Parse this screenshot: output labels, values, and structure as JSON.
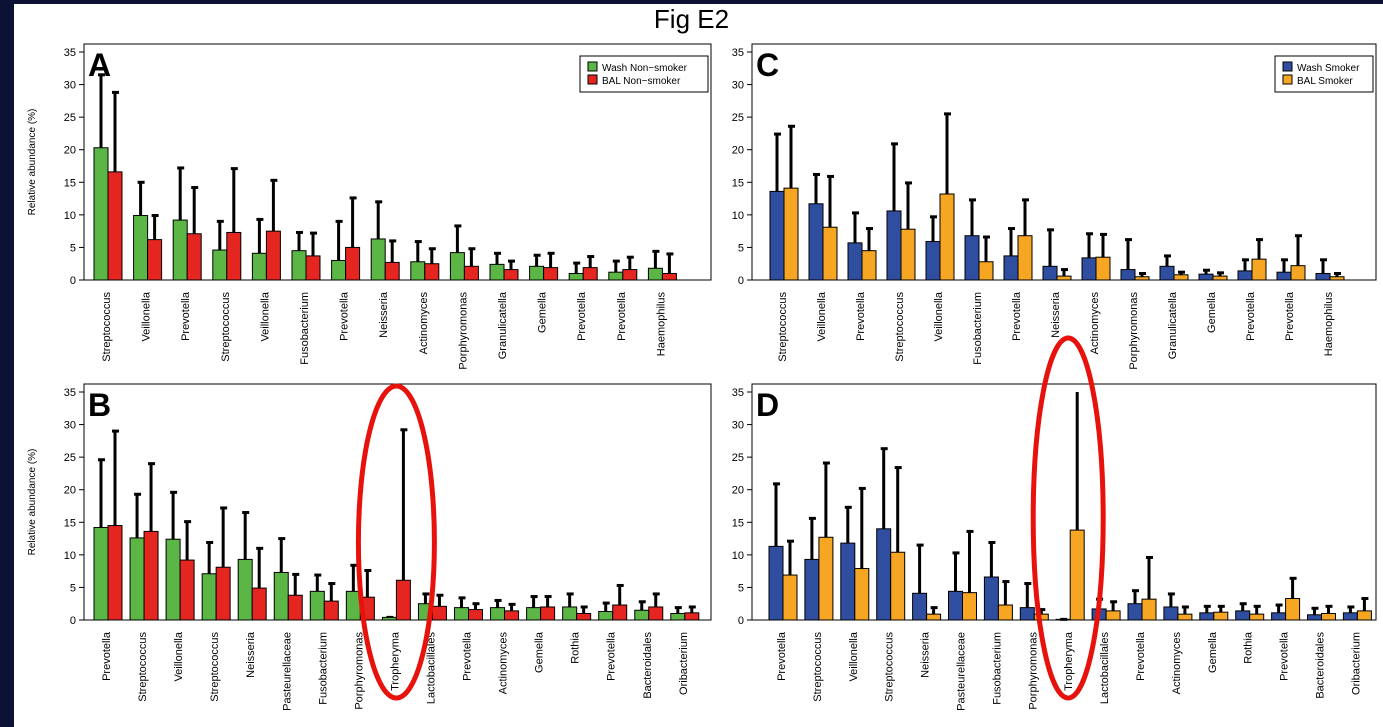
{
  "figure_title": "Fig E2",
  "colors": {
    "wash_nonsmoker": "#5cb646",
    "bal_nonsmoker": "#e52620",
    "wash_smoker": "#2f4ea0",
    "bal_smoker": "#f6a623",
    "highlight_ellipse": "#e8120c",
    "slide_border": "#0b1233"
  },
  "chart_data": [
    {
      "panel": "A",
      "type": "bar",
      "ylabel": "Relative abundance (%)",
      "ylim": [
        0,
        35
      ],
      "yticks": [
        0,
        5,
        10,
        15,
        20,
        25,
        30,
        35
      ],
      "legend": "top-right",
      "categories": [
        "Streptococcus",
        "Veillonella",
        "Prevotella",
        "Streptococcus",
        "Veillonella",
        "Fusobacterium",
        "Prevotella",
        "Neisseria",
        "Actinomyces",
        "Porphyromonas",
        "Granulicatella",
        "Gemella",
        "Prevotella",
        "Prevotella",
        "Haemophilus"
      ],
      "series": [
        {
          "name": "Wash Non−smoker",
          "color": "#5cb646",
          "values": [
            20.3,
            9.9,
            9.2,
            4.6,
            4.1,
            4.5,
            3.0,
            6.3,
            2.8,
            4.2,
            2.4,
            2.1,
            1.0,
            1.2,
            1.8
          ],
          "errors": [
            31.5,
            15.0,
            17.2,
            9.0,
            9.3,
            7.3,
            9.0,
            12.0,
            5.9,
            8.3,
            4.1,
            3.8,
            2.6,
            2.9,
            4.4
          ]
        },
        {
          "name": "BAL Non−smoker",
          "color": "#e52620",
          "values": [
            16.6,
            6.2,
            7.1,
            7.3,
            7.5,
            3.7,
            5.0,
            2.7,
            2.5,
            2.1,
            1.6,
            1.9,
            1.9,
            1.6,
            1.0
          ],
          "errors": [
            28.8,
            9.9,
            14.2,
            17.1,
            15.3,
            7.2,
            12.6,
            6.0,
            4.8,
            4.8,
            2.9,
            4.1,
            3.6,
            3.5,
            4.0
          ]
        }
      ]
    },
    {
      "panel": "B",
      "type": "bar",
      "ylabel": "Relative abundance (%)",
      "ylim": [
        0,
        35
      ],
      "yticks": [
        0,
        5,
        10,
        15,
        20,
        25,
        30,
        35
      ],
      "legend": "none",
      "categories": [
        "Prevotella",
        "Streptococcus",
        "Veillonella",
        "Streptococcus",
        "Neisseria",
        "Pasteurellaceae",
        "Fusobacterium",
        "Porphyromonas",
        "Tropheryma",
        "Lactobacillales",
        "Prevotella",
        "Actinomyces",
        "Gemella",
        "Rothia",
        "Prevotella",
        "Bacteroidales",
        "Oribacterium"
      ],
      "highlight": "Tropheryma",
      "series": [
        {
          "name": "Wash Non−smoker",
          "color": "#5cb646",
          "values": [
            14.2,
            12.6,
            12.4,
            7.1,
            9.3,
            7.3,
            4.4,
            4.4,
            0.4,
            2.5,
            1.9,
            1.9,
            1.9,
            2.0,
            1.3,
            1.5,
            1.0
          ],
          "errors": [
            24.6,
            19.3,
            19.6,
            11.9,
            16.5,
            12.5,
            6.9,
            8.4,
            0.4,
            4.0,
            3.4,
            3.0,
            3.6,
            4.0,
            2.6,
            2.8,
            1.9
          ]
        },
        {
          "name": "BAL Non−smoker",
          "color": "#e52620",
          "values": [
            14.5,
            13.6,
            9.2,
            8.1,
            4.9,
            3.8,
            2.9,
            3.5,
            6.1,
            2.1,
            1.6,
            1.4,
            2.0,
            1.0,
            2.3,
            2.0,
            1.1
          ],
          "errors": [
            29.0,
            24.0,
            15.1,
            17.2,
            11.0,
            7.0,
            5.6,
            7.6,
            29.2,
            3.8,
            2.5,
            2.4,
            3.6,
            2.0,
            5.3,
            4.0,
            2.0
          ]
        }
      ]
    },
    {
      "panel": "C",
      "type": "bar",
      "ylabel": "",
      "ylim": [
        0,
        35
      ],
      "yticks": [
        0,
        5,
        10,
        15,
        20,
        25,
        30,
        35
      ],
      "legend": "top-right",
      "categories": [
        "Streptococcus",
        "Veillonella",
        "Prevotella",
        "Streptococcus",
        "Veillonella",
        "Fusobacterium",
        "Prevotella",
        "Neisseria",
        "Actinomyces",
        "Porphyromonas",
        "Granulicatella",
        "Gemella",
        "Prevotella",
        "Prevotella",
        "Haemophilus"
      ],
      "series": [
        {
          "name": "Wash Smoker",
          "color": "#2f4ea0",
          "values": [
            13.6,
            11.7,
            5.7,
            10.6,
            5.9,
            6.8,
            3.7,
            2.1,
            3.4,
            1.6,
            2.1,
            0.9,
            1.4,
            1.2,
            1.0
          ],
          "errors": [
            22.4,
            16.2,
            10.3,
            20.9,
            9.7,
            12.3,
            7.9,
            7.7,
            7.1,
            6.2,
            3.7,
            1.5,
            3.1,
            3.1,
            3.1
          ]
        },
        {
          "name": "BAL Smoker",
          "color": "#f6a623",
          "values": [
            14.1,
            8.1,
            4.5,
            7.8,
            13.2,
            2.8,
            6.8,
            0.6,
            3.5,
            0.5,
            0.8,
            0.6,
            3.2,
            2.2,
            0.5
          ],
          "errors": [
            23.6,
            15.9,
            7.9,
            14.9,
            25.5,
            6.6,
            12.3,
            1.6,
            7.0,
            1.0,
            1.2,
            1.1,
            6.2,
            6.8,
            1.0
          ]
        }
      ]
    },
    {
      "panel": "D",
      "type": "bar",
      "ylabel": "",
      "ylim": [
        0,
        35
      ],
      "yticks": [
        0,
        5,
        10,
        15,
        20,
        25,
        30,
        35
      ],
      "legend": "none",
      "categories": [
        "Prevotella",
        "Streptococcus",
        "Veillonella",
        "Streptococcus",
        "Neisseria",
        "Pasteurellaceae",
        "Fusobacterium",
        "Porphyromonas",
        "Tropheryma",
        "Lactobacillales",
        "Prevotella",
        "Actinomyces",
        "Gemella",
        "Rothia",
        "Prevotella",
        "Bacteroidales",
        "Oribacterium"
      ],
      "highlight": "Tropheryma",
      "series": [
        {
          "name": "Wash Smoker",
          "color": "#2f4ea0",
          "values": [
            11.3,
            9.3,
            11.8,
            14.0,
            4.1,
            4.4,
            6.6,
            1.9,
            0.1,
            1.7,
            2.5,
            2.0,
            1.1,
            1.4,
            1.1,
            0.8,
            1.1
          ],
          "errors": [
            20.9,
            15.6,
            17.3,
            26.3,
            11.5,
            10.3,
            11.9,
            5.6,
            0.1,
            3.2,
            4.5,
            4.0,
            2.1,
            2.5,
            2.3,
            1.8,
            2.0
          ]
        },
        {
          "name": "BAL Smoker",
          "color": "#f6a623",
          "values": [
            6.9,
            12.7,
            7.9,
            10.4,
            0.9,
            4.2,
            2.3,
            0.9,
            13.8,
            1.4,
            3.2,
            0.9,
            1.2,
            0.9,
            3.3,
            1.0,
            1.4
          ],
          "errors": [
            12.1,
            24.1,
            20.2,
            23.4,
            1.9,
            13.6,
            5.9,
            1.6,
            35.0,
            2.8,
            9.6,
            2.0,
            2.1,
            2.1,
            6.4,
            2.1,
            3.3
          ]
        }
      ]
    }
  ]
}
